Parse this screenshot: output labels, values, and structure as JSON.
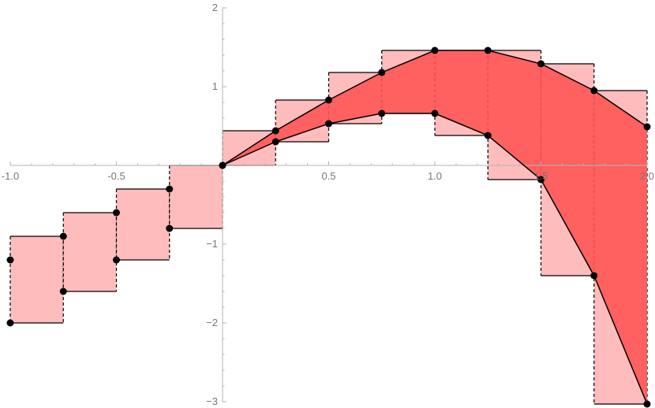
{
  "colors": {
    "box_fill": "#ffbcbc",
    "band_fill": "#ff5555",
    "line": "#000000",
    "point": "#000000",
    "axis": "#b3b3b3",
    "tick_label": "#777777"
  },
  "chart_data": {
    "type": "line",
    "title": "",
    "xlabel": "",
    "ylabel": "",
    "xlim": [
      -1.0,
      2.0
    ],
    "ylim": [
      -3,
      2
    ],
    "grid": false,
    "x_ticks": [
      -1.0,
      -0.5,
      0.5,
      1.0,
      1.5,
      2.0
    ],
    "x_tick_labels": [
      "-1.0",
      "-0.5",
      "0.5",
      "1.0",
      "1.5",
      "2.0"
    ],
    "x_minor_step": 0.1,
    "y_ticks": [
      -3,
      -2,
      -1,
      1,
      2
    ],
    "y_tick_labels": [
      "−3",
      "−2",
      "−1",
      "1",
      "2"
    ],
    "y_minor_step": 0.2,
    "fill_between_negative_x": false,
    "series": [
      {
        "role": "upper",
        "x": [
          -1.0,
          -0.75,
          -0.5,
          -0.25,
          0.0,
          0.25,
          0.5,
          0.75,
          1.0,
          1.25,
          1.5,
          1.75,
          2.0
        ],
        "values": [
          -1.2,
          -0.9,
          -0.6,
          -0.3,
          0.0,
          0.44,
          0.83,
          1.18,
          1.46,
          1.46,
          1.29,
          0.95,
          0.49
        ]
      },
      {
        "role": "lower",
        "x": [
          -1.0,
          -0.75,
          -0.5,
          -0.25,
          0.0,
          0.25,
          0.5,
          0.75,
          1.0,
          1.25,
          1.5,
          1.75,
          2.0
        ],
        "values": [
          -2.0,
          -1.6,
          -1.2,
          -0.8,
          0.0,
          0.3,
          0.53,
          0.66,
          0.66,
          0.38,
          -0.18,
          -1.4,
          -3.03
        ]
      }
    ],
    "boxes": [
      {
        "x0": -1.0,
        "x1": -0.75,
        "y0": -2.0,
        "y1": -0.9
      },
      {
        "x0": -0.75,
        "x1": -0.5,
        "y0": -1.6,
        "y1": -0.6
      },
      {
        "x0": -0.5,
        "x1": -0.25,
        "y0": -1.2,
        "y1": -0.3
      },
      {
        "x0": -0.25,
        "x1": 0.0,
        "y0": -0.8,
        "y1": 0.0
      },
      {
        "x0": 0.0,
        "x1": 0.25,
        "y0": 0.0,
        "y1": 0.44
      },
      {
        "x0": 0.25,
        "x1": 0.5,
        "y0": 0.3,
        "y1": 0.83
      },
      {
        "x0": 0.5,
        "x1": 0.75,
        "y0": 0.53,
        "y1": 1.18
      },
      {
        "x0": 0.75,
        "x1": 1.0,
        "y0": 0.66,
        "y1": 1.46
      },
      {
        "x0": 1.0,
        "x1": 1.25,
        "y0": 0.38,
        "y1": 1.46
      },
      {
        "x0": 1.25,
        "x1": 1.5,
        "y0": -0.18,
        "y1": 1.46
      },
      {
        "x0": 1.5,
        "x1": 1.75,
        "y0": -1.4,
        "y1": 1.29
      },
      {
        "x0": 1.75,
        "x1": 2.0,
        "y0": -3.03,
        "y1": 0.95
      }
    ]
  }
}
